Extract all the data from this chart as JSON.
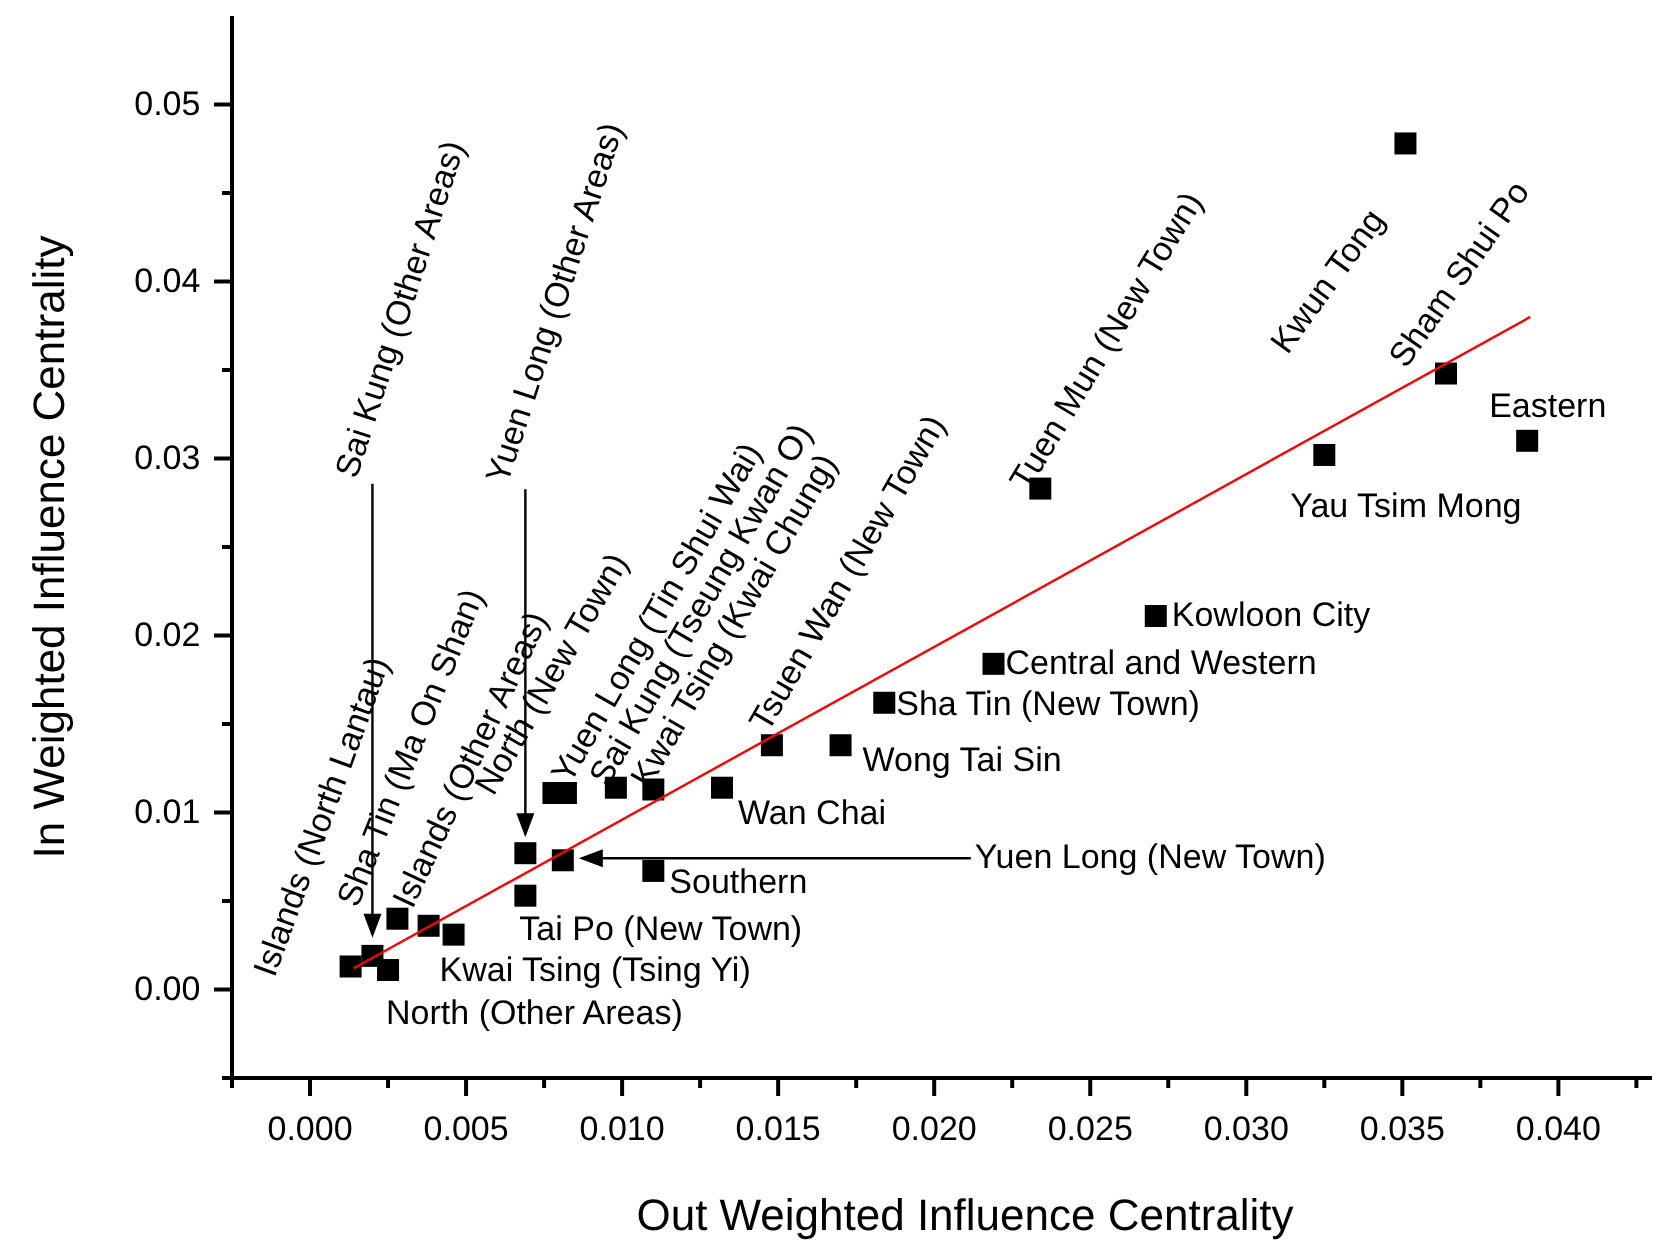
{
  "chart_data": {
    "type": "scatter",
    "xlabel": "Out Weighted Influence Centrality",
    "ylabel": "In Weighted Influence Centrality",
    "xlim": [
      -0.0025,
      0.043
    ],
    "ylim": [
      -0.005,
      0.055
    ],
    "xticks": [
      {
        "value": -0.0025,
        "label": null
      },
      {
        "value": 0,
        "label": "0.000"
      },
      {
        "value": 0.0025,
        "label": null
      },
      {
        "value": 0.005,
        "label": "0.005"
      },
      {
        "value": 0.0075,
        "label": null
      },
      {
        "value": 0.01,
        "label": "0.010"
      },
      {
        "value": 0.0125,
        "label": null
      },
      {
        "value": 0.015,
        "label": "0.015"
      },
      {
        "value": 0.0175,
        "label": null
      },
      {
        "value": 0.02,
        "label": "0.020"
      },
      {
        "value": 0.0225,
        "label": null
      },
      {
        "value": 0.025,
        "label": "0.025"
      },
      {
        "value": 0.0275,
        "label": null
      },
      {
        "value": 0.03,
        "label": "0.030"
      },
      {
        "value": 0.0325,
        "label": null
      },
      {
        "value": 0.035,
        "label": "0.035"
      },
      {
        "value": 0.0375,
        "label": null
      },
      {
        "value": 0.04,
        "label": "0.040"
      },
      {
        "value": 0.0425,
        "label": null
      }
    ],
    "yticks": [
      {
        "value": -0.005,
        "label": null
      },
      {
        "value": 0,
        "label": "0.00"
      },
      {
        "value": 0.005,
        "label": null
      },
      {
        "value": 0.01,
        "label": "0.01"
      },
      {
        "value": 0.015,
        "label": null
      },
      {
        "value": 0.02,
        "label": "0.02"
      },
      {
        "value": 0.025,
        "label": null
      },
      {
        "value": 0.03,
        "label": "0.03"
      },
      {
        "value": 0.035,
        "label": null
      },
      {
        "value": 0.04,
        "label": "0.04"
      },
      {
        "value": 0.045,
        "label": null
      },
      {
        "value": 0.05,
        "label": "0.05"
      }
    ],
    "grid": false,
    "marker": "square",
    "series": [
      {
        "color": "#000000",
        "x": [
          0.0013,
          0.002,
          0.0025,
          0.0028,
          0.0038,
          0.0046,
          0.0069,
          0.0069,
          0.0081,
          0.0078,
          0.0082,
          0.0098,
          0.011,
          0.011,
          0.0132,
          0.0148,
          0.017,
          0.0184,
          0.0219,
          0.0234,
          0.0271,
          0.0325,
          0.0364,
          0.0351,
          0.039
        ],
        "values": [
          0.0013,
          0.0019,
          0.0011,
          0.004,
          0.0036,
          0.0031,
          0.0077,
          0.0053,
          0.0073,
          0.0111,
          0.0111,
          0.0114,
          0.0113,
          0.0067,
          0.0114,
          0.0138,
          0.0138,
          0.0162,
          0.0184,
          0.0283,
          0.0211,
          0.0302,
          0.0348,
          0.0478,
          0.031
        ]
      },
      {
        "type": "line",
        "color": "#ff0000",
        "x": [
          0.0014,
          0.0391
        ],
        "values": [
          0.0012,
          0.038
        ],
        "line_style": "solid",
        "marker": "none"
      }
    ],
    "annotations": [
      {
        "text": "Islands (North Lantau)",
        "x": 0.0013,
        "y": 0.0013
      },
      "Sai Kung (Other Areas)",
      {
        "text": "North (Other Areas)",
        "x": 0.0025,
        "y": 0.0011
      },
      {
        "text": "Sha Tin (Ma On Shan)",
        "x": 0.0028,
        "y": 0.004
      },
      {
        "text": "Islands (Other Areas)",
        "x": 0.0038,
        "y": 0.0036
      },
      {
        "text": "Kwai Tsing (Tsing Yi)",
        "x": 0.0046,
        "y": 0.0031
      },
      "Yuen Long (Other Areas)",
      {
        "text": "Tai Po (New Town)",
        "x": 0.0069,
        "y": 0.0053
      },
      "Yuen Long (New Town)",
      {
        "text": "North (New Town)",
        "x": 0.0078,
        "y": 0.0111
      },
      {
        "text": "Yuen Long (Tin Shui Wai)",
        "x": 0.0082,
        "y": 0.0111
      },
      {
        "text": "Sai Kung (Tseung Kwan O)",
        "x": 0.0098,
        "y": 0.0114
      },
      {
        "text": "Kwai Tsing (Kwai Chung)",
        "x": 0.011,
        "y": 0.0113
      },
      {
        "text": "Southern",
        "x": 0.011,
        "y": 0.0067
      },
      {
        "text": "Wan Chai",
        "x": 0.0132,
        "y": 0.0114
      },
      {
        "text": "Tsuen Wan (New Town)",
        "x": 0.0148,
        "y": 0.0138
      },
      {
        "text": "Wong Tai Sin",
        "x": 0.017,
        "y": 0.0138
      },
      {
        "text": "Sha Tin (New Town)",
        "x": 0.0184,
        "y": 0.0162
      },
      {
        "text": "Central and Western",
        "x": 0.0219,
        "y": 0.0184
      },
      {
        "text": "Tuen Mun (New Town)",
        "x": 0.0234,
        "y": 0.0283
      },
      {
        "text": "Kowloon City",
        "x": 0.0271,
        "y": 0.0211
      },
      {
        "text": "Yau Tsim Mong",
        "x": 0.0325,
        "y": 0.0302
      },
      {
        "text": "Sham Shui Po",
        "x": 0.0364,
        "y": 0.0348
      },
      {
        "text": "Kwun Tong",
        "x": 0.0351,
        "y": 0.0478
      },
      {
        "text": "Eastern",
        "x": 0.039,
        "y": 0.031
      }
    ]
  }
}
